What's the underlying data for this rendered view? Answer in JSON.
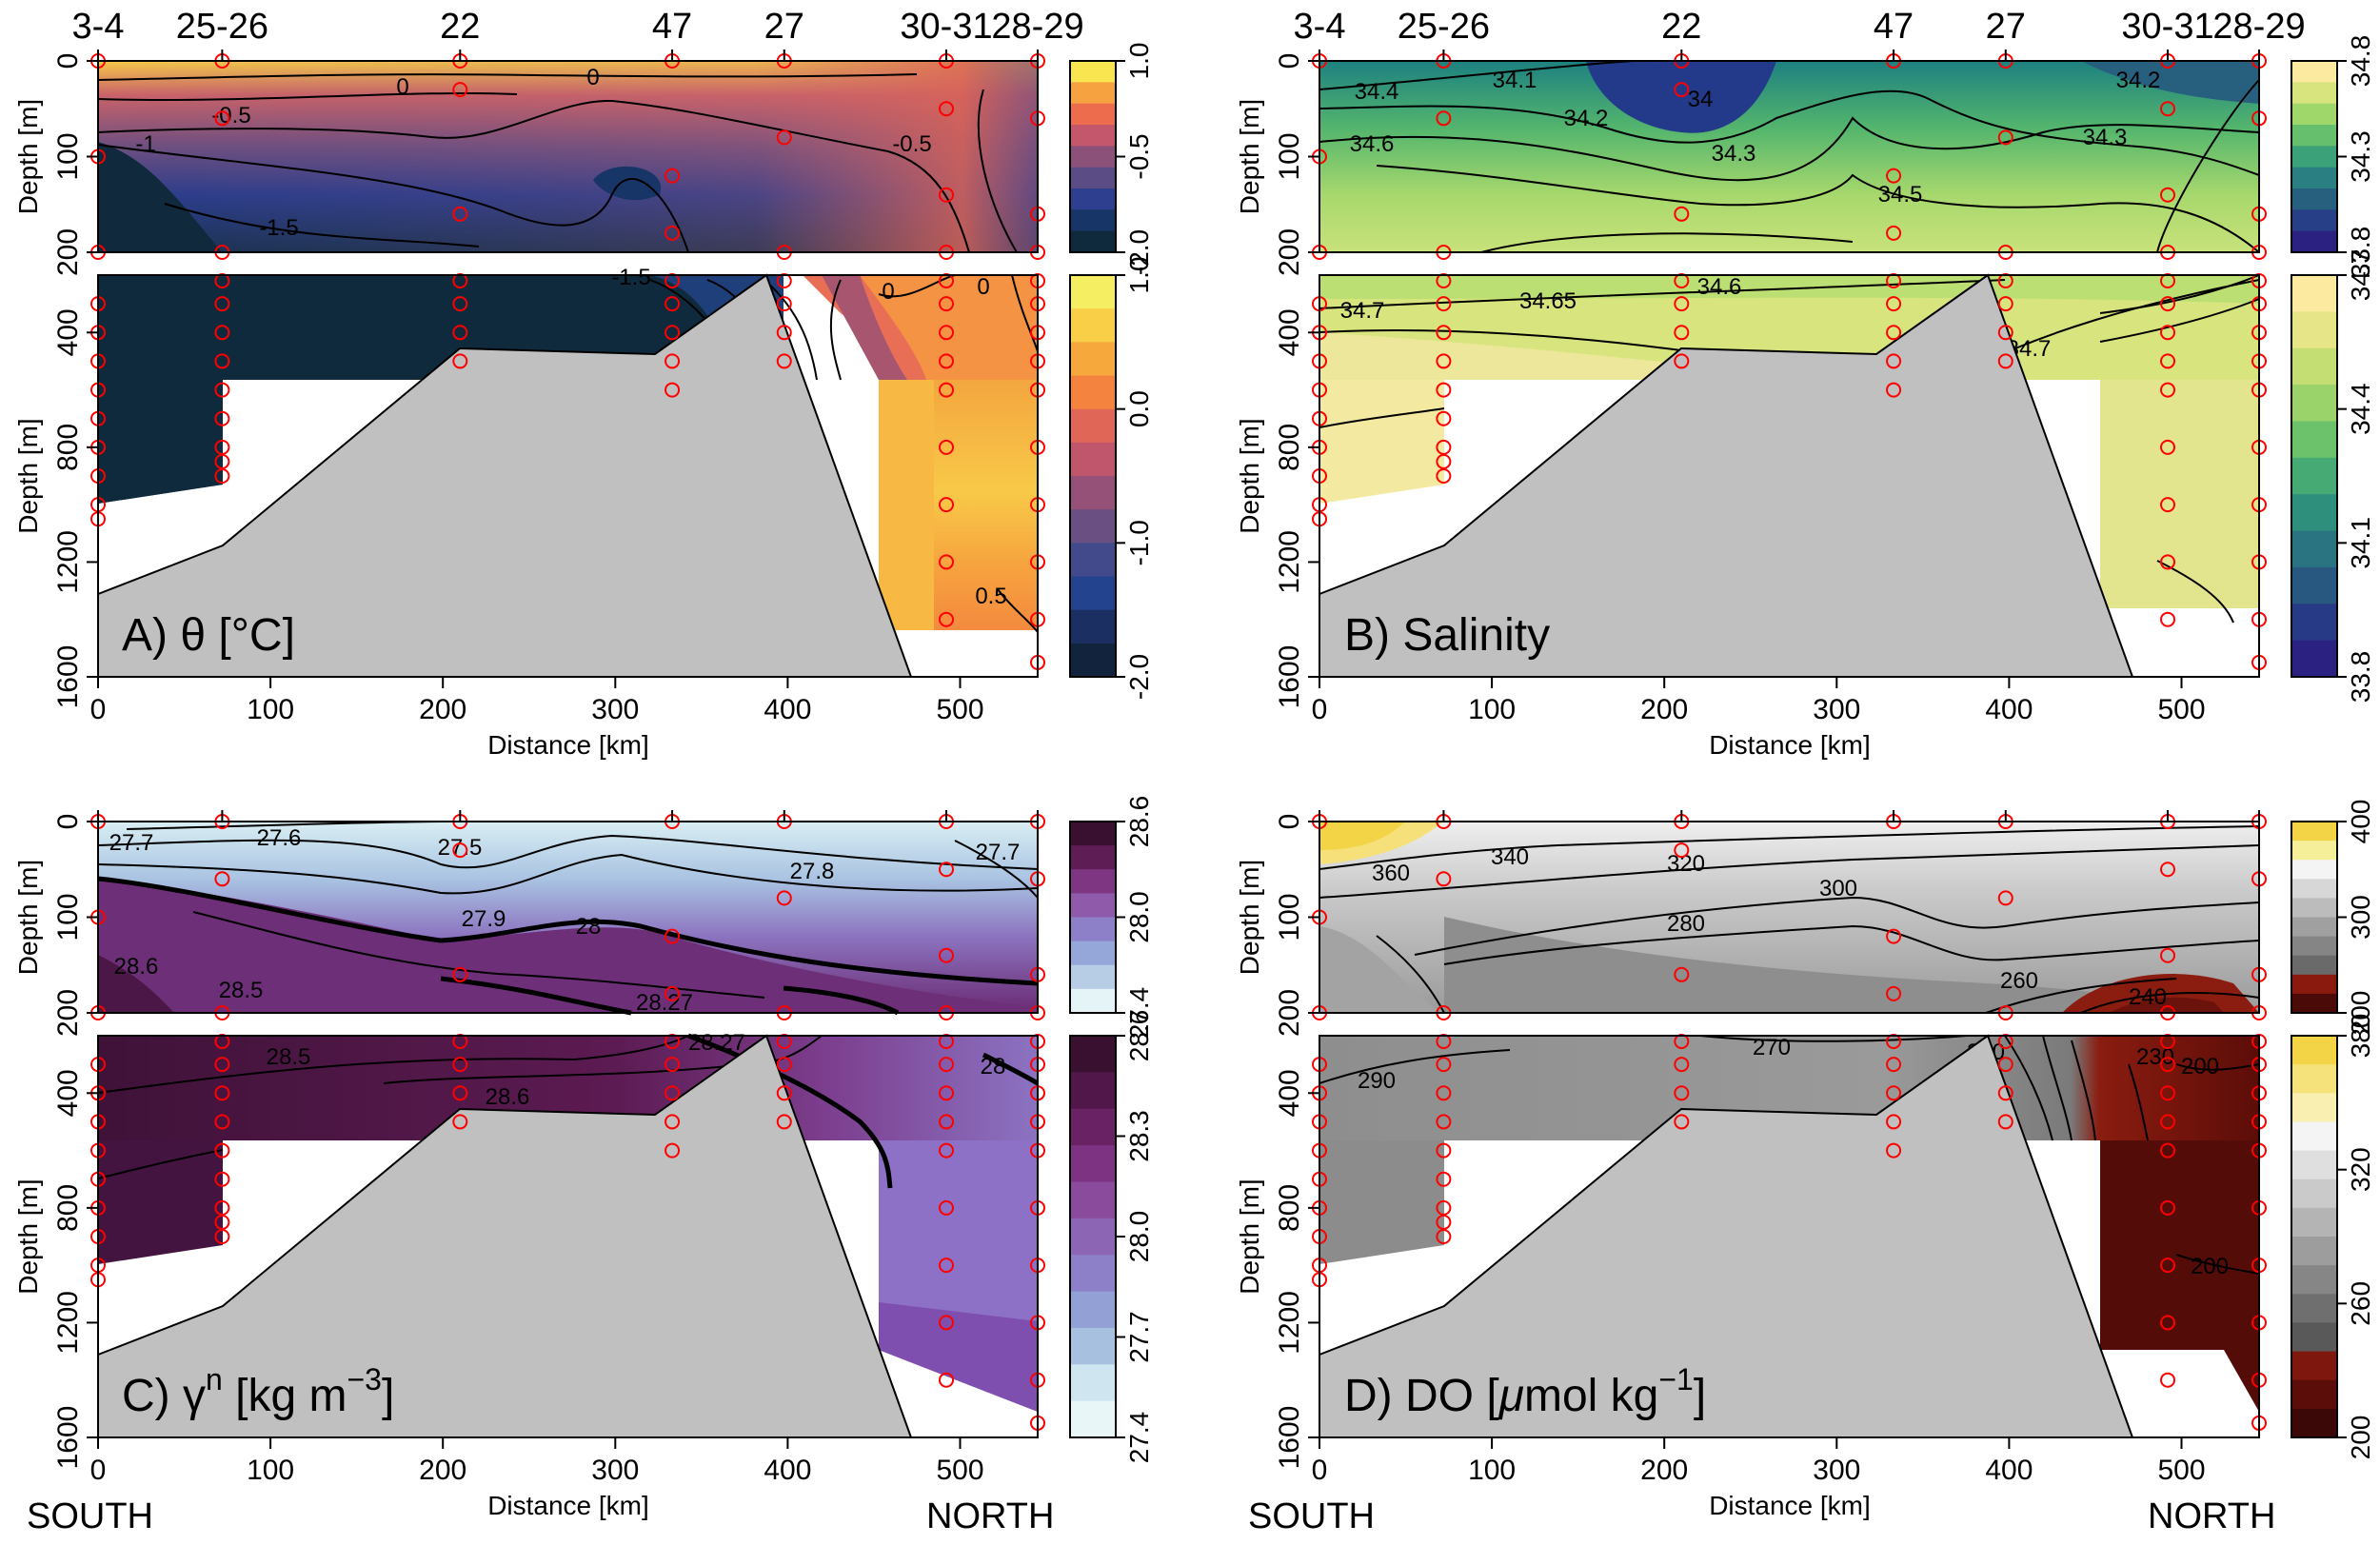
{
  "chart_data": [
    {
      "type": "heatmap",
      "panel_label": "A) θ [°C]",
      "quantity": "Potential temperature",
      "xlabel": "Distance [km]",
      "ylabel": "Depth [m]",
      "xlim": [
        0,
        545
      ],
      "ylim_upper": [
        0,
        200
      ],
      "ylim_lower": [
        200,
        1600
      ],
      "x_ticks": [
        "0",
        "100",
        "200",
        "300",
        "400",
        "500"
      ],
      "y_ticks_upper": [
        "0",
        "100",
        "200"
      ],
      "y_ticks_lower": [
        "400",
        "800",
        "1200",
        "1600"
      ],
      "colorbar_upper": {
        "ticks": [
          "1.0",
          "-0.5",
          "-2.0"
        ],
        "colors": [
          "#f8e550",
          "#f7a240",
          "#ee6c4e",
          "#c4576b",
          "#8c5178",
          "#5b4c86",
          "#2f3f8f",
          "#173566",
          "#0f2a3c"
        ]
      },
      "colorbar_lower": {
        "ticks": [
          "1.0",
          "0.0",
          "-1.0",
          "-2.0"
        ],
        "colors": [
          "#f5ee62",
          "#f8cf47",
          "#f7a83c",
          "#f48340",
          "#e06757",
          "#c0566b",
          "#955177",
          "#6a4f83",
          "#434a8c",
          "#24438f",
          "#1c2f63",
          "#12243d"
        ]
      },
      "contour_labels": [
        "0",
        "0",
        "-0.5",
        "-1",
        "-1.5",
        "-0.5",
        "-1",
        "-1.5",
        "-1",
        "0",
        "0",
        "0.5"
      ]
    },
    {
      "type": "heatmap",
      "panel_label": "B) Salinity",
      "quantity": "Salinity",
      "xlabel": "Distance [km]",
      "ylabel": "Depth [m]",
      "xlim": [
        0,
        545
      ],
      "ylim_upper": [
        0,
        200
      ],
      "ylim_lower": [
        200,
        1600
      ],
      "x_ticks": [
        "0",
        "100",
        "200",
        "300",
        "400",
        "500"
      ],
      "y_ticks_upper": [
        "0",
        "100",
        "200"
      ],
      "y_ticks_lower": [
        "400",
        "800",
        "1200",
        "1600"
      ],
      "colorbar_upper": {
        "ticks": [
          "34.8",
          "34.3",
          "33.8"
        ],
        "colors": [
          "#fbeaa0",
          "#d8e57e",
          "#9fd76a",
          "#66bf6c",
          "#3aa179",
          "#2a7f82",
          "#27607f",
          "#263f86",
          "#2a2180"
        ]
      },
      "colorbar_lower": {
        "ticks": [
          "34.7",
          "34.4",
          "34.1",
          "33.8"
        ],
        "colors": [
          "#fbeaa0",
          "#e6e688",
          "#c5de74",
          "#99d36a",
          "#6cc26a",
          "#46aa74",
          "#2e8f7d",
          "#2a7380",
          "#28577f",
          "#273a85",
          "#2a2180"
        ]
      },
      "contour_labels": [
        "34.4",
        "34.1",
        "34.2",
        "34",
        "34.2",
        "34.6",
        "34.3",
        "34.3",
        "34.5",
        "34.7",
        "34.65",
        "34.6",
        "34.7"
      ]
    },
    {
      "type": "heatmap",
      "panel_label": "C) γⁿ [kg m⁻³]",
      "quantity": "Neutral density",
      "xlabel": "Distance [km]",
      "ylabel": "Depth [m]",
      "xlim": [
        0,
        545
      ],
      "ylim_upper": [
        0,
        200
      ],
      "ylim_lower": [
        200,
        1600
      ],
      "x_ticks": [
        "0",
        "100",
        "200",
        "300",
        "400",
        "500"
      ],
      "y_ticks_upper": [
        "0",
        "100",
        "200"
      ],
      "y_ticks_lower": [
        "400",
        "800",
        "1200",
        "1600"
      ],
      "colorbar_upper": {
        "ticks": [
          "28.6",
          "28.0",
          "27.4"
        ],
        "colors": [
          "#3a1030",
          "#5f1d55",
          "#7e3683",
          "#8f5aaa",
          "#8d80c8",
          "#95a6d8",
          "#b7cde6",
          "#e5f4f7"
        ]
      },
      "colorbar_lower": {
        "ticks": [
          "28.6",
          "28.3",
          "28.0",
          "27.7",
          "27.4"
        ],
        "colors": [
          "#3a1030",
          "#51174a",
          "#692263",
          "#7d3382",
          "#8a4b9c",
          "#8c65b4",
          "#8d80c8",
          "#92a0d6",
          "#a8c0e0",
          "#cfe5ef",
          "#e8f6f8"
        ]
      },
      "contour_labels": [
        "27.7",
        "27.6",
        "27.5",
        "27.8",
        "27.7",
        "27.9",
        "28",
        "28.6",
        "28.5",
        "28.27",
        "28.5",
        "28.27",
        "28.6",
        "28"
      ]
    },
    {
      "type": "heatmap",
      "panel_label": "D) DO [μmol kg⁻¹]",
      "quantity": "Dissolved oxygen",
      "xlabel": "Distance [km]",
      "ylabel": "Depth [m]",
      "xlim": [
        0,
        545
      ],
      "ylim_upper": [
        0,
        200
      ],
      "ylim_lower": [
        200,
        1600
      ],
      "x_ticks": [
        "0",
        "100",
        "200",
        "300",
        "400",
        "500"
      ],
      "y_ticks_upper": [
        "0",
        "100",
        "200"
      ],
      "y_ticks_lower": [
        "400",
        "800",
        "1200",
        "1600"
      ],
      "colorbar_upper": {
        "ticks": [
          "400",
          "300",
          "200"
        ],
        "colors": [
          "#f3d447",
          "#f5ef9a",
          "#f4f4f4",
          "#d7d7d7",
          "#bcbcbc",
          "#a0a0a0",
          "#858585",
          "#6a6a6a",
          "#8a1a0e",
          "#4a0b08"
        ]
      },
      "colorbar_lower": {
        "ticks": [
          "380",
          "320",
          "260",
          "200"
        ],
        "colors": [
          "#f3d447",
          "#f6e27a",
          "#f8efb0",
          "#f4f4f4",
          "#dfdfdf",
          "#cacaca",
          "#b4b4b4",
          "#9d9d9d",
          "#868686",
          "#6f6f6f",
          "#595959",
          "#7e170d",
          "#5b0d09",
          "#3c0707"
        ]
      },
      "contour_labels": [
        "360",
        "340",
        "320",
        "300",
        "280",
        "260",
        "240",
        "290",
        "270",
        "260",
        "230",
        "200",
        "200"
      ]
    }
  ],
  "stations": [
    "3-4",
    "25-26",
    "22",
    "47",
    "27",
    "30-31",
    "28-29"
  ],
  "direction_labels": {
    "south": "SOUTH",
    "north": "NORTH"
  },
  "text": {
    "ylabel": "Depth [m]",
    "xlabel": "Distance [km]",
    "panel_a": "A) θ [°C]",
    "panel_b": "B) Salinity",
    "panel_c_main": "C) γ",
    "panel_c_sup": "n",
    "panel_c_unit": "[kg m",
    "panel_c_exp": "−3",
    "panel_c_close": "]",
    "panel_d_main": "D) DO [",
    "panel_d_mu": "μ",
    "panel_d_unit": "mol kg",
    "panel_d_exp": "−1",
    "panel_d_close": "]"
  }
}
